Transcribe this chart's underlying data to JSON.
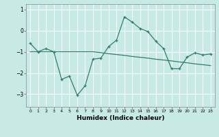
{
  "title": "",
  "xlabel": "Humidex (Indice chaleur)",
  "bg_color": "#c8eae4",
  "grid_color": "#ffffff",
  "line_color": "#2e7d6e",
  "x_values": [
    0,
    1,
    2,
    3,
    4,
    5,
    6,
    7,
    8,
    9,
    10,
    11,
    12,
    13,
    14,
    15,
    16,
    17,
    18,
    19,
    20,
    21,
    22,
    23
  ],
  "y_line1": [
    -0.6,
    -1.0,
    -0.85,
    -1.0,
    -2.3,
    -2.15,
    -3.05,
    -2.6,
    -1.35,
    -1.3,
    -0.75,
    -0.45,
    0.65,
    0.4,
    0.1,
    -0.05,
    -0.5,
    -0.85,
    -1.8,
    -1.8,
    -1.25,
    -1.05,
    -1.15,
    -1.1
  ],
  "y_line2": [
    -1.0,
    -1.0,
    -1.0,
    -1.0,
    -1.0,
    -1.0,
    -1.0,
    -1.0,
    -1.0,
    -1.04,
    -1.09,
    -1.13,
    -1.17,
    -1.22,
    -1.26,
    -1.3,
    -1.35,
    -1.39,
    -1.43,
    -1.48,
    -1.52,
    -1.57,
    -1.61,
    -1.65
  ],
  "ylim": [
    -3.6,
    1.25
  ],
  "yticks": [
    -3,
    -2,
    -1,
    0,
    1
  ],
  "xlim": [
    -0.5,
    23.5
  ]
}
